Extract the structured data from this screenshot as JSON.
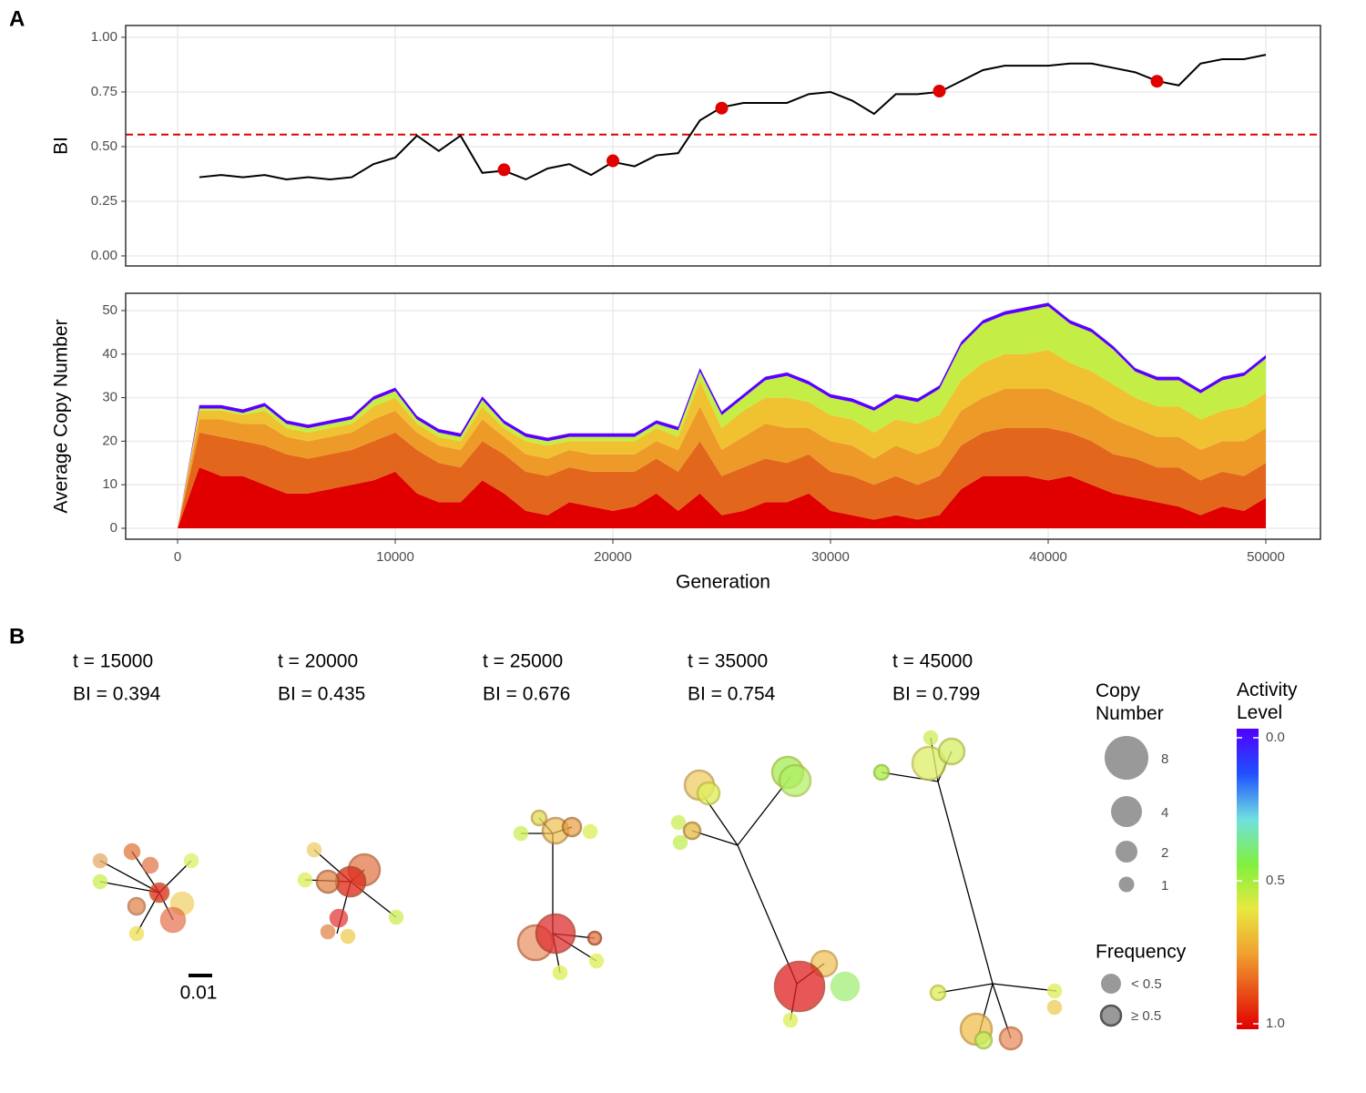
{
  "panel_labels": [
    "A",
    "B"
  ],
  "chart_data": [
    {
      "type": "line",
      "y_label": "BI",
      "x": [
        1000,
        2000,
        3000,
        4000,
        5000,
        6000,
        7000,
        8000,
        9000,
        10000,
        11000,
        12000,
        13000,
        14000,
        15000,
        16000,
        17000,
        18000,
        19000,
        20000,
        21000,
        22000,
        23000,
        24000,
        25000,
        26000,
        27000,
        28000,
        29000,
        30000,
        31000,
        32000,
        33000,
        34000,
        35000,
        36000,
        37000,
        38000,
        39000,
        40000,
        41000,
        42000,
        43000,
        44000,
        45000,
        46000,
        47000,
        48000,
        49000,
        50000
      ],
      "series": [
        {
          "color": "#000000",
          "values": [
            0.36,
            0.37,
            0.36,
            0.37,
            0.35,
            0.36,
            0.35,
            0.36,
            0.42,
            0.45,
            0.55,
            0.48,
            0.55,
            0.38,
            0.39,
            0.35,
            0.4,
            0.42,
            0.37,
            0.43,
            0.41,
            0.46,
            0.47,
            0.62,
            0.68,
            0.7,
            0.7,
            0.7,
            0.74,
            0.75,
            0.71,
            0.65,
            0.74,
            0.74,
            0.75,
            0.8,
            0.85,
            0.87,
            0.87,
            0.87,
            0.88,
            0.88,
            0.86,
            0.84,
            0.8,
            0.78,
            0.88,
            0.9,
            0.9,
            0.92
          ]
        }
      ],
      "points": {
        "color": "#e00000",
        "x": [
          15000,
          20000,
          25000,
          35000,
          45000
        ],
        "values": [
          0.394,
          0.435,
          0.676,
          0.754,
          0.799
        ]
      },
      "threshold": {
        "value": 0.555,
        "color": "#e00000"
      },
      "xlim": [
        -2385,
        52510
      ],
      "xticks": [
        0,
        10000,
        20000,
        30000,
        40000,
        50000
      ],
      "ylim": [
        -0.046,
        1.054
      ],
      "yticks": [
        {
          "value": 0,
          "label": "0.00"
        },
        0.25,
        {
          "value": 0.5,
          "label": "0.50"
        },
        0.75,
        {
          "value": 1,
          "label": "1.00"
        }
      ],
      "grid": true
    },
    {
      "type": "stacked-area",
      "x_label": "Generation",
      "y_label": "Average Copy Number",
      "x": [
        0,
        1000,
        2000,
        3000,
        4000,
        5000,
        6000,
        7000,
        8000,
        9000,
        10000,
        11000,
        12000,
        13000,
        14000,
        15000,
        16000,
        17000,
        18000,
        19000,
        20000,
        21000,
        22000,
        23000,
        24000,
        25000,
        26000,
        27000,
        28000,
        29000,
        30000,
        31000,
        32000,
        33000,
        34000,
        35000,
        36000,
        37000,
        38000,
        39000,
        40000,
        41000,
        42000,
        43000,
        44000,
        45000,
        46000,
        47000,
        48000,
        49000,
        50000
      ],
      "series": [
        {
          "color": "#e00000",
          "values": [
            0,
            14,
            12,
            12,
            10,
            8,
            8,
            9,
            10,
            11,
            13,
            8,
            6,
            6,
            11,
            8,
            4,
            3,
            6,
            5,
            4,
            5,
            8,
            4,
            8,
            3,
            4,
            6,
            6,
            8,
            4,
            3,
            2,
            3,
            2,
            3,
            9,
            12,
            12,
            12,
            11,
            12,
            10,
            8,
            7,
            6,
            5,
            3,
            5,
            4,
            7
          ]
        },
        {
          "color": "#e2661c",
          "values": [
            0,
            8,
            9,
            8,
            9,
            9,
            8,
            8,
            8,
            9,
            9,
            10,
            9,
            8,
            9,
            9,
            9,
            9,
            8,
            8,
            9,
            8,
            8,
            9,
            12,
            9,
            10,
            10,
            9,
            9,
            9,
            9,
            8,
            9,
            8,
            9,
            10,
            10,
            11,
            11,
            12,
            10,
            10,
            9,
            9,
            8,
            9,
            8,
            8,
            8,
            8
          ]
        },
        {
          "color": "#ee9a28",
          "values": [
            0,
            3,
            4,
            4,
            5,
            4,
            4,
            4,
            4,
            5,
            5,
            4,
            4,
            4,
            5,
            4,
            4,
            4,
            4,
            4,
            4,
            4,
            4,
            5,
            8,
            6,
            7,
            8,
            8,
            6,
            7,
            7,
            6,
            7,
            7,
            7,
            8,
            8,
            9,
            9,
            9,
            8,
            8,
            8,
            7,
            7,
            7,
            7,
            7,
            8,
            8
          ]
        },
        {
          "color": "#f0c232",
          "values": [
            0,
            2,
            2,
            2,
            3,
            2,
            2,
            2,
            2,
            3,
            3,
            2,
            2,
            2,
            3,
            2,
            3,
            3,
            2,
            3,
            3,
            3,
            3,
            3,
            6,
            5,
            6,
            6,
            7,
            6,
            6,
            6,
            6,
            6,
            7,
            7,
            7,
            8,
            8,
            8,
            9,
            8,
            8,
            8,
            7,
            7,
            7,
            7,
            7,
            8,
            8
          ]
        },
        {
          "color": "#c4ee46",
          "values": [
            0,
            0.5,
            0.5,
            0.5,
            1,
            1,
            1,
            1,
            1,
            1.5,
            1.5,
            1,
            1,
            1,
            1.5,
            1,
            1,
            1,
            1,
            1,
            1,
            1,
            1,
            1.5,
            2,
            3,
            3,
            4,
            5,
            4,
            4,
            4,
            5,
            5,
            5,
            6,
            8,
            9,
            9,
            10,
            10,
            9,
            9,
            8,
            6,
            6,
            6,
            6,
            7,
            7,
            8
          ]
        },
        {
          "color": "#5a00ff",
          "values": [
            0,
            0.8,
            0.8,
            0.8,
            0.8,
            0.8,
            0.8,
            0.8,
            0.8,
            0.8,
            0.8,
            0.8,
            0.8,
            0.8,
            0.8,
            0.8,
            0.8,
            0.8,
            0.8,
            0.8,
            0.8,
            0.8,
            0.8,
            0.8,
            0.8,
            0.8,
            0.8,
            0.8,
            0.8,
            0.8,
            0.8,
            0.8,
            0.8,
            0.8,
            0.8,
            0.8,
            0.8,
            0.8,
            0.8,
            0.8,
            0.8,
            0.8,
            0.8,
            0.8,
            0.8,
            0.8,
            0.8,
            0.8,
            0.8,
            0.8,
            0.8
          ]
        }
      ],
      "xlim": [
        -2385,
        52510
      ],
      "xticks": [
        0,
        10000,
        20000,
        30000,
        40000,
        50000
      ],
      "ylim": [
        -2.51,
        53.97
      ],
      "yticks": [
        0,
        10,
        20,
        30,
        40,
        50
      ],
      "grid": true
    }
  ],
  "snapshots": [
    {
      "t": "t = 15000",
      "bi": "BI = 0.394"
    },
    {
      "t": "t = 20000",
      "bi": "BI = 0.435"
    },
    {
      "t": "t = 25000",
      "bi": "BI = 0.676"
    },
    {
      "t": "t = 35000",
      "bi": "BI = 0.754"
    },
    {
      "t": "t = 45000",
      "bi": "BI = 0.799"
    }
  ],
  "scale_bar": "0.01",
  "copy_number_legend": {
    "title": "Copy Number",
    "sizes": [
      8,
      4,
      2,
      1
    ]
  },
  "frequency_legend": {
    "title": "Frequency",
    "labels": [
      "< 0.5",
      "≥ 0.5"
    ]
  },
  "colorbar": {
    "title": "Activity Level",
    "lim": [
      0,
      1
    ],
    "ticks": [
      {
        "value": 0,
        "label": "0.0"
      },
      0.5,
      {
        "value": 1,
        "label": "1.0"
      }
    ]
  }
}
